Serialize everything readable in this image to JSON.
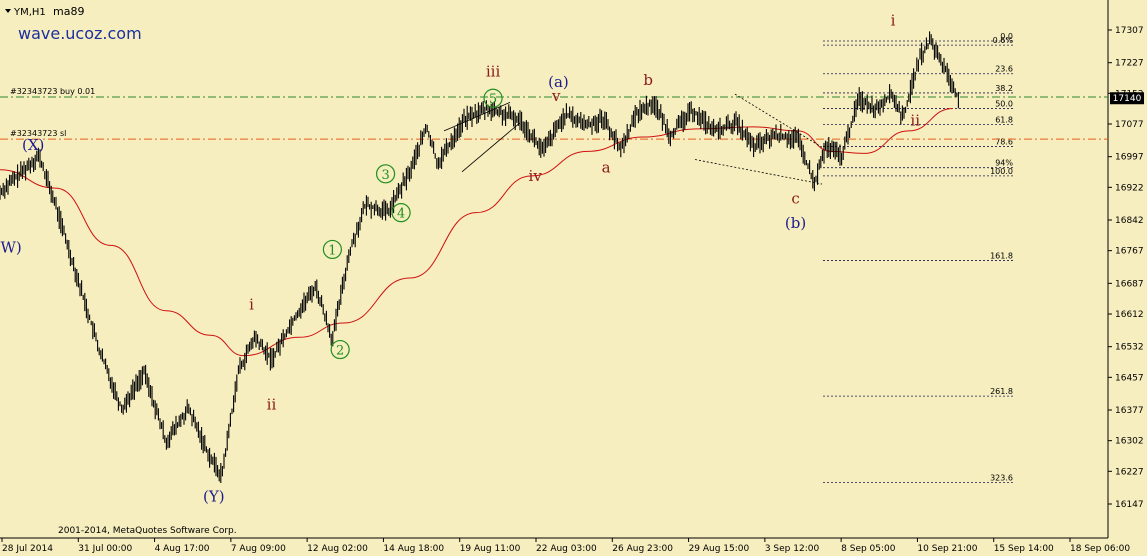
{
  "header": {
    "symbol": "YM,H1",
    "indicator": "ma89",
    "watermark": "wave.ucoz.com",
    "copyright": "2001-2014, MetaQuotes Software Corp."
  },
  "chart_data": {
    "type": "line",
    "symbol": "YM,H1",
    "ylim": [
      16147,
      17307
    ],
    "y_ticks": [
      17307,
      17227,
      17152,
      17077,
      16997,
      16922,
      16842,
      16767,
      16687,
      16612,
      16532,
      16457,
      16377,
      16302,
      16227,
      16147
    ],
    "x_ticks": [
      "28 Jul 2014",
      "31 Jul 00:00",
      "4 Aug 17:00",
      "7 Aug 09:00",
      "12 Aug 02:00",
      "14 Aug 18:00",
      "19 Aug 11:00",
      "22 Aug 03:00",
      "26 Aug 23:00",
      "29 Aug 15:00",
      "3 Sep 12:00",
      "8 Sep 05:00",
      "10 Sep 21:00",
      "15 Sep 14:00",
      "18 Sep 06:00"
    ],
    "current_price": "17140",
    "price_path": [
      [
        0,
        16910
      ],
      [
        0.02,
        16960
      ],
      [
        0.035,
        17000
      ],
      [
        0.05,
        16880
      ],
      [
        0.07,
        16700
      ],
      [
        0.09,
        16520
      ],
      [
        0.11,
        16380
      ],
      [
        0.13,
        16470
      ],
      [
        0.15,
        16300
      ],
      [
        0.17,
        16380
      ],
      [
        0.19,
        16260
      ],
      [
        0.2,
        16215
      ],
      [
        0.215,
        16470
      ],
      [
        0.23,
        16555
      ],
      [
        0.245,
        16500
      ],
      [
        0.265,
        16600
      ],
      [
        0.285,
        16680
      ],
      [
        0.3,
        16550
      ],
      [
        0.315,
        16760
      ],
      [
        0.33,
        16880
      ],
      [
        0.35,
        16860
      ],
      [
        0.37,
        16960
      ],
      [
        0.385,
        17070
      ],
      [
        0.395,
        16980
      ],
      [
        0.42,
        17090
      ],
      [
        0.44,
        17115
      ],
      [
        0.47,
        17085
      ],
      [
        0.49,
        17010
      ],
      [
        0.51,
        17100
      ],
      [
        0.53,
        17075
      ],
      [
        0.545,
        17090
      ],
      [
        0.56,
        17015
      ],
      [
        0.575,
        17105
      ],
      [
        0.59,
        17130
      ],
      [
        0.605,
        17050
      ],
      [
        0.625,
        17110
      ],
      [
        0.645,
        17060
      ],
      [
        0.665,
        17080
      ],
      [
        0.68,
        17020
      ],
      [
        0.7,
        17050
      ],
      [
        0.72,
        17040
      ],
      [
        0.735,
        16930
      ],
      [
        0.745,
        17020
      ],
      [
        0.76,
        17000
      ],
      [
        0.775,
        17140
      ],
      [
        0.79,
        17115
      ],
      [
        0.805,
        17150
      ],
      [
        0.815,
        17090
      ],
      [
        0.83,
        17240
      ],
      [
        0.84,
        17280
      ],
      [
        0.855,
        17200
      ],
      [
        0.865,
        17140
      ]
    ],
    "moving_average": {
      "name": "ma89",
      "color": "#d01010",
      "points": [
        [
          0,
          16965
        ],
        [
          0.05,
          16920
        ],
        [
          0.1,
          16780
        ],
        [
          0.15,
          16620
        ],
        [
          0.19,
          16560
        ],
        [
          0.22,
          16510
        ],
        [
          0.27,
          16555
        ],
        [
          0.31,
          16590
        ],
        [
          0.37,
          16700
        ],
        [
          0.43,
          16860
        ],
        [
          0.48,
          16950
        ],
        [
          0.53,
          17010
        ],
        [
          0.58,
          17045
        ],
        [
          0.63,
          17065
        ],
        [
          0.68,
          17070
        ],
        [
          0.72,
          17060
        ],
        [
          0.75,
          17010
        ],
        [
          0.78,
          17005
        ],
        [
          0.82,
          17060
        ],
        [
          0.86,
          17115
        ]
      ]
    },
    "order_lines": [
      {
        "label": "#32343723 buy 0.01",
        "price": 17143,
        "color": "#2e8b2e",
        "style": "dash-dot"
      },
      {
        "label": "#32343723 sl",
        "price": 17040,
        "color": "#e8601a",
        "style": "dash-dot"
      }
    ],
    "fibonacci": {
      "levels": [
        {
          "label": "0.0",
          "price": 17280
        },
        {
          "label": "0.6%",
          "price": 17270
        },
        {
          "label": "23.6",
          "price": 17200
        },
        {
          "label": "38.2",
          "price": 17153
        },
        {
          "label": "50.0",
          "price": 17115
        },
        {
          "label": "61.8",
          "price": 17076
        },
        {
          "label": "78.6",
          "price": 17022
        },
        {
          "label": "94%",
          "price": 16970
        },
        {
          "label": "100.0",
          "price": 16950
        },
        {
          "label": "161.8",
          "price": 16743
        },
        {
          "label": "261.8",
          "price": 16411
        },
        {
          "label": "323.6",
          "price": 16200
        }
      ]
    },
    "wave_labels": [
      {
        "text": "(X)",
        "color": "#1a1a8c",
        "x": 0.03,
        "price": 17025
      },
      {
        "text": "W)",
        "color": "#1a1a8c",
        "x": 0.01,
        "price": 16775
      },
      {
        "text": "(Y)",
        "color": "#1a1a8c",
        "x": 0.193,
        "price": 16165
      },
      {
        "text": "i",
        "color": "#8b1a1a",
        "x": 0.227,
        "price": 16635
      },
      {
        "text": "ii",
        "color": "#8b1a1a",
        "x": 0.245,
        "price": 16390
      },
      {
        "text": "1",
        "color": "#1f8f1f",
        "x": 0.3,
        "price": 16770,
        "circle": true
      },
      {
        "text": "2",
        "color": "#1f8f1f",
        "x": 0.307,
        "price": 16525,
        "circle": true
      },
      {
        "text": "3",
        "color": "#1f8f1f",
        "x": 0.348,
        "price": 16955,
        "circle": true
      },
      {
        "text": "4",
        "color": "#1f8f1f",
        "x": 0.362,
        "price": 16860,
        "circle": true
      },
      {
        "text": "5",
        "color": "#1f8f1f",
        "x": 0.445,
        "price": 17140,
        "circle": true
      },
      {
        "text": "iii",
        "color": "#8b1a1a",
        "x": 0.445,
        "price": 17205
      },
      {
        "text": "iv",
        "color": "#8b1a1a",
        "x": 0.483,
        "price": 16950
      },
      {
        "text": "v",
        "color": "#8b1a1a",
        "x": 0.502,
        "price": 17145
      },
      {
        "text": "(a)",
        "color": "#1a1a8c",
        "x": 0.504,
        "price": 17180
      },
      {
        "text": "a",
        "color": "#8b1a1a",
        "x": 0.547,
        "price": 16970
      },
      {
        "text": "b",
        "color": "#8b1a1a",
        "x": 0.585,
        "price": 17185
      },
      {
        "text": "c",
        "color": "#8b1a1a",
        "x": 0.718,
        "price": 16895
      },
      {
        "text": "(b)",
        "color": "#1a1a8c",
        "x": 0.718,
        "price": 16835
      },
      {
        "text": "i",
        "color": "#8b1a1a",
        "x": 0.806,
        "price": 17330
      },
      {
        "text": "ii",
        "color": "#8b1a1a",
        "x": 0.826,
        "price": 17085
      }
    ]
  }
}
